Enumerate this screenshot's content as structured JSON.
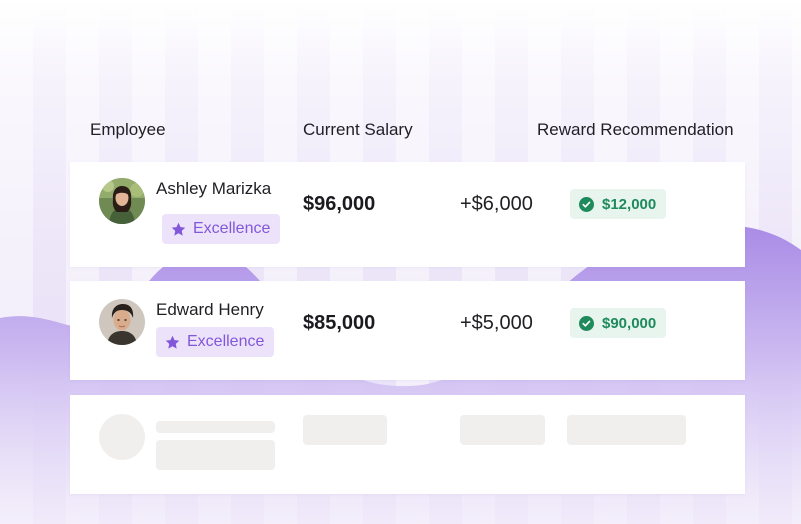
{
  "header": {
    "employee": "Employee",
    "current_salary": "Current Salary",
    "reward_recommendation": "Reward Recommendation"
  },
  "rows": [
    {
      "name": "Ashley Marizka",
      "badge": "Excellence",
      "salary": "$96,000",
      "increase": "+$6,000",
      "reward": "$12,000"
    },
    {
      "name": "Edward Henry",
      "badge": "Excellence",
      "salary": "$85,000",
      "increase": "+$5,000",
      "reward": "$90,000"
    }
  ],
  "icons": {
    "badge_icon": "star-icon",
    "reward_icon": "check-circle-icon"
  },
  "colors": {
    "accent_purple": "#8257d9",
    "badge_bg": "#ece3fb",
    "reward_green": "#1f8a5c",
    "reward_bg": "#e7f5ee",
    "wave_purple": "#b8a0ea",
    "skeleton": "#f1eeee"
  }
}
